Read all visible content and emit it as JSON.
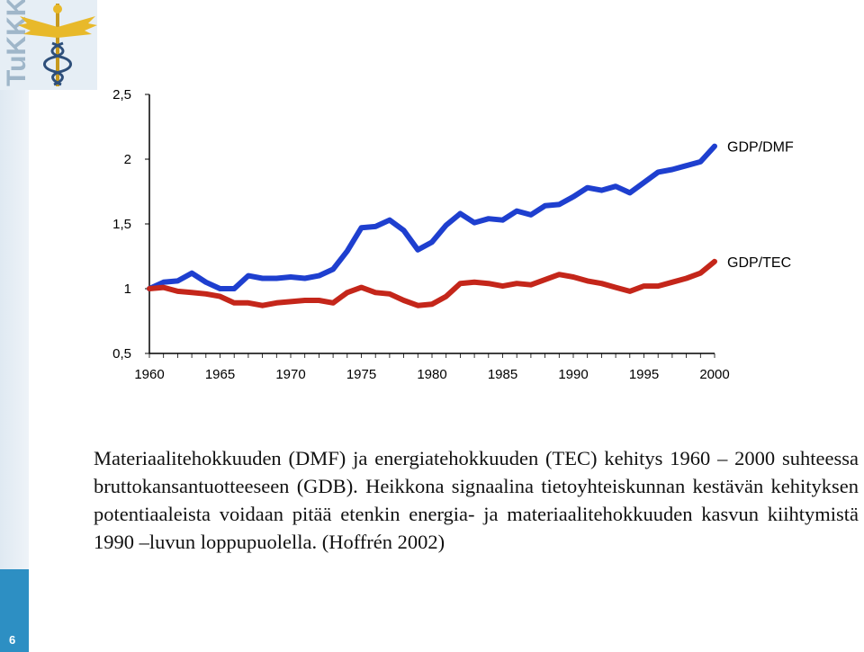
{
  "logo": {
    "text": "TuKKK",
    "icon": "caduceus-icon"
  },
  "page_number": "6",
  "caption": "Materiaalitehokkuuden (DMF) ja energiatehokkuuden (TEC) kehitys 1960 – 2000 suhteessa bruttokansantuotteeseen (GDB). Heikkona signaalina tietoyhteiskunnan kestävän kehityksen potentiaaleista voidaan pitää etenkin energia- ja materiaalitehokkuuden kasvun kiihtymistä 1990 –luvun loppupuolella. (Hoffrén 2002)",
  "colors": {
    "dmf": "#1e3fcf",
    "tec": "#c4261a",
    "sidebar": "#2d8fc3"
  },
  "chart_data": {
    "type": "line",
    "x": [
      1960,
      1961,
      1962,
      1963,
      1964,
      1965,
      1966,
      1967,
      1968,
      1969,
      1970,
      1971,
      1972,
      1973,
      1974,
      1975,
      1976,
      1977,
      1978,
      1979,
      1980,
      1981,
      1982,
      1983,
      1984,
      1985,
      1986,
      1987,
      1988,
      1989,
      1990,
      1991,
      1992,
      1993,
      1994,
      1995,
      1996,
      1997,
      1998,
      1999,
      2000
    ],
    "x_ticks": [
      "1960",
      "1965",
      "1970",
      "1975",
      "1980",
      "1985",
      "1990",
      "1995",
      "2000"
    ],
    "y_ticks": [
      "0,5",
      "1",
      "1,5",
      "2",
      "2,5"
    ],
    "ylim": [
      0.5,
      2.5
    ],
    "xlim": [
      1960,
      2000
    ],
    "grid": false,
    "series": [
      {
        "name": "GDP/DMF",
        "color": "#1e3fcf",
        "values": [
          1.0,
          1.05,
          1.06,
          1.12,
          1.05,
          1.0,
          1.0,
          1.1,
          1.08,
          1.08,
          1.09,
          1.08,
          1.1,
          1.15,
          1.29,
          1.47,
          1.48,
          1.53,
          1.45,
          1.3,
          1.36,
          1.49,
          1.58,
          1.51,
          1.54,
          1.53,
          1.6,
          1.57,
          1.64,
          1.65,
          1.71,
          1.78,
          1.76,
          1.79,
          1.74,
          1.82,
          1.9,
          1.92,
          1.95,
          1.98,
          2.1
        ]
      },
      {
        "name": "GDP/TEC",
        "color": "#c4261a",
        "values": [
          1.0,
          1.01,
          0.98,
          0.97,
          0.96,
          0.94,
          0.89,
          0.89,
          0.87,
          0.89,
          0.9,
          0.91,
          0.91,
          0.89,
          0.97,
          1.01,
          0.97,
          0.96,
          0.91,
          0.87,
          0.88,
          0.94,
          1.04,
          1.05,
          1.04,
          1.02,
          1.04,
          1.03,
          1.07,
          1.11,
          1.09,
          1.06,
          1.04,
          1.01,
          0.98,
          1.02,
          1.02,
          1.05,
          1.08,
          1.12,
          1.21
        ]
      }
    ]
  }
}
